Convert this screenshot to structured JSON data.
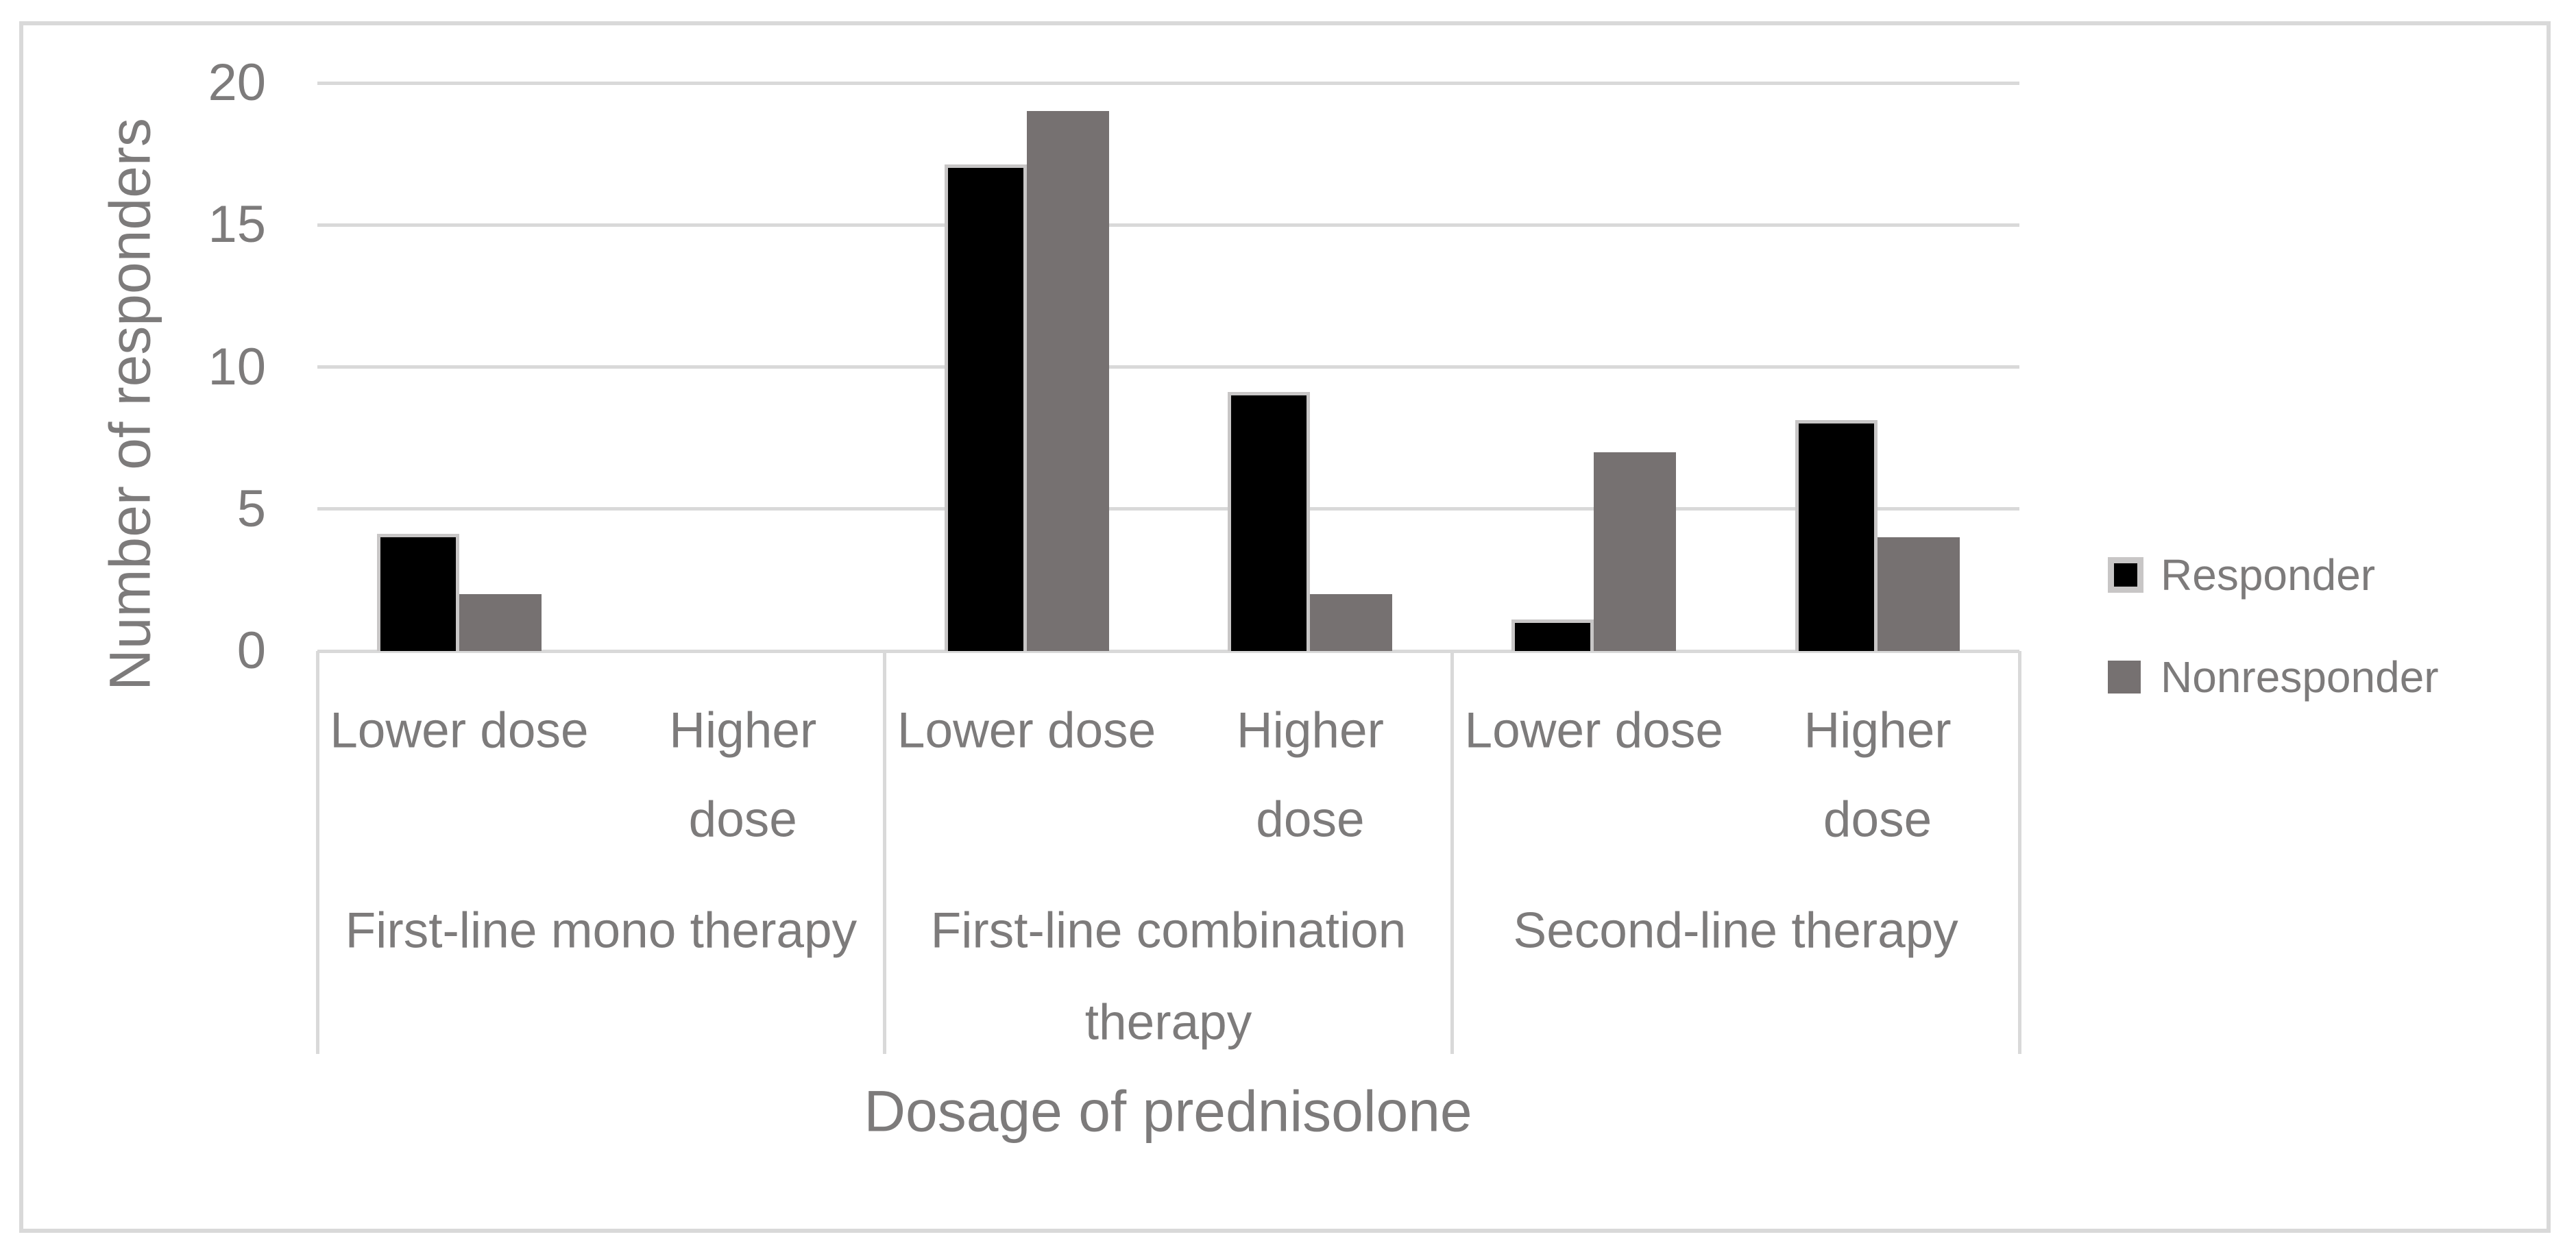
{
  "chart": {
    "y_axis_title": "Number of responders",
    "x_axis_title": "Dosage of prednisolone",
    "colors": {
      "responder_fill": "#000000",
      "responder_border": "#c8c6c6",
      "nonresponder_fill": "#767171",
      "grid": "#d9d9d9",
      "frame_border": "#d9d9d9",
      "text": "#7d7b7b",
      "background": "#ffffff"
    }
  },
  "chart_data": {
    "type": "bar",
    "title": "",
    "xlabel": "Dosage of prednisolone",
    "ylabel": "Number of responders",
    "ylim": [
      0,
      20
    ],
    "yticks": [
      0,
      5,
      10,
      15,
      20
    ],
    "grid": true,
    "legend_position": "right",
    "groups": [
      {
        "label": "First-line mono therapy",
        "categories": [
          "Lower dose",
          "Higher dose"
        ]
      },
      {
        "label": "First-line combination therapy",
        "categories": [
          "Lower dose",
          "Higher dose"
        ]
      },
      {
        "label": "Second-line therapy",
        "categories": [
          "Lower dose",
          "Higher dose"
        ]
      }
    ],
    "categories": [
      "Lower dose",
      "Higher dose",
      "Lower dose",
      "Higher dose",
      "Lower dose",
      "Higher dose"
    ],
    "series": [
      {
        "name": "Responder",
        "values": [
          4,
          0,
          17,
          9,
          1,
          8
        ]
      },
      {
        "name": "Nonresponder",
        "values": [
          2,
          0,
          19,
          2,
          7,
          4
        ]
      }
    ]
  }
}
